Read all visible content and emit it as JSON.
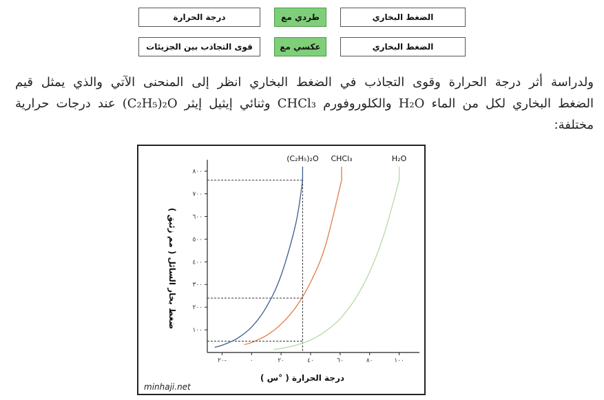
{
  "relations": [
    {
      "left": "الضغط البخاري",
      "relation": "طردي مع",
      "right": "درجة الحرارة"
    },
    {
      "left": "الضغط البخاري",
      "relation": "عكسي مع",
      "right": "قوى التجاذب بين الجزيئات"
    }
  ],
  "paragraph": {
    "line1": "ولدراسة أثر درجة الحرارة وقوى التجاذب في الضغط البخاري انظر إلى المنحنى الآتي والذي يمثل قيم",
    "line2_a": "الضغط البخاري لكل من الماء ",
    "line2_h2o": "H₂O",
    "line2_b": " والكلوروفورم ",
    "line2_chcl3": "CHCl₃",
    "line2_c": " وثنائي إيثيل إيثر ",
    "line2_ether": "(C₂H₅)₂O",
    "line2_d": " عند درجات حرارية",
    "line3": "مختلفة:"
  },
  "colors": {
    "relation_bg": "#7fce79",
    "ether": "#3b5b8c",
    "chloroform": "#e07a45",
    "water": "#b5d9a2"
  },
  "chart_data": {
    "type": "line",
    "xlabel": "درجة الحرارة ( °س )",
    "ylabel": "ضغط بخار السائل ( مم زئبق )",
    "watermark": "minhaji.net",
    "xlim": [
      -30,
      110
    ],
    "ylim": [
      0,
      820
    ],
    "x_ticks": [
      -20,
      0,
      20,
      40,
      60,
      80,
      100
    ],
    "x_tick_labels": [
      "٢٠-",
      "٠",
      "٢٠",
      "٤٠",
      "٦٠",
      "٨٠",
      "١٠٠"
    ],
    "y_ticks": [
      100,
      200,
      300,
      400,
      500,
      600,
      700,
      800
    ],
    "y_tick_labels": [
      "١٠٠",
      "٢٠٠",
      "٣٠٠",
      "٤٠٠",
      "٥٠٠",
      "٦٠٠",
      "٧٠٠",
      "٨٠٠"
    ],
    "reference_x": 34.6,
    "reference_y": [
      760,
      240,
      50
    ],
    "series": [
      {
        "name": "(C₂H₅)₂O",
        "color": "#3b5b8c",
        "bp": 34.6,
        "x": [
          -25,
          -20,
          -10,
          0,
          10,
          20,
          30,
          34.6
        ],
        "y": [
          23,
          32,
          61,
          112,
          200,
          340,
          570,
          760
        ]
      },
      {
        "name": "CHCl₃",
        "color": "#e07a45",
        "bp": 61,
        "x": [
          -5,
          0,
          10,
          20,
          30,
          40,
          50,
          61
        ],
        "y": [
          35,
          44,
          75,
          125,
          200,
          310,
          470,
          760
        ]
      },
      {
        "name": "H₂O",
        "color": "#b5d9a2",
        "bp": 100,
        "x": [
          15,
          20,
          30,
          40,
          50,
          60,
          70,
          80,
          90,
          100
        ],
        "y": [
          13,
          18,
          32,
          55,
          93,
          149,
          234,
          355,
          526,
          760
        ]
      }
    ]
  }
}
